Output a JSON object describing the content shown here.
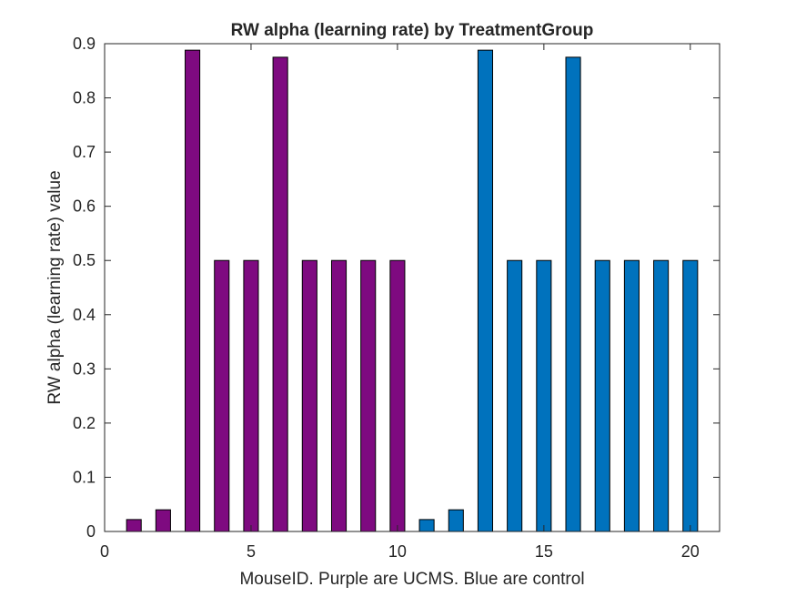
{
  "chart_data": {
    "type": "bar",
    "title": "RW alpha (learning rate) by TreatmentGroup",
    "xlabel": "MouseID. Purple are UCMS. Blue are control",
    "ylabel": "RW alpha (learning rate) value",
    "xlim": [
      0,
      21
    ],
    "ylim": [
      0,
      0.9
    ],
    "xticks": [
      0,
      5,
      10,
      15,
      20
    ],
    "yticks": [
      0,
      0.1,
      0.2,
      0.3,
      0.4,
      0.5,
      0.6,
      0.7,
      0.8,
      0.9
    ],
    "xtick_labels": [
      "0",
      "5",
      "10",
      "15",
      "20"
    ],
    "ytick_labels": [
      "0",
      "0.1",
      "0.2",
      "0.3",
      "0.4",
      "0.5",
      "0.6",
      "0.7",
      "0.8",
      "0.9"
    ],
    "grid": false,
    "bar_width": 0.5,
    "x": [
      1,
      2,
      3,
      4,
      5,
      6,
      7,
      8,
      9,
      10,
      11,
      12,
      13,
      14,
      15,
      16,
      17,
      18,
      19,
      20
    ],
    "values": [
      0.022,
      0.04,
      0.888,
      0.5,
      0.5,
      0.875,
      0.5,
      0.5,
      0.5,
      0.5,
      0.022,
      0.04,
      0.888,
      0.5,
      0.5,
      0.875,
      0.5,
      0.5,
      0.5,
      0.5
    ],
    "colors": [
      "#7E0A80",
      "#7E0A80",
      "#7E0A80",
      "#7E0A80",
      "#7E0A80",
      "#7E0A80",
      "#7E0A80",
      "#7E0A80",
      "#7E0A80",
      "#7E0A80",
      "#0072BD",
      "#0072BD",
      "#0072BD",
      "#0072BD",
      "#0072BD",
      "#0072BD",
      "#0072BD",
      "#0072BD",
      "#0072BD",
      "#0072BD"
    ],
    "group_colors": {
      "UCMS": "#7E0A80",
      "control": "#0072BD"
    }
  }
}
